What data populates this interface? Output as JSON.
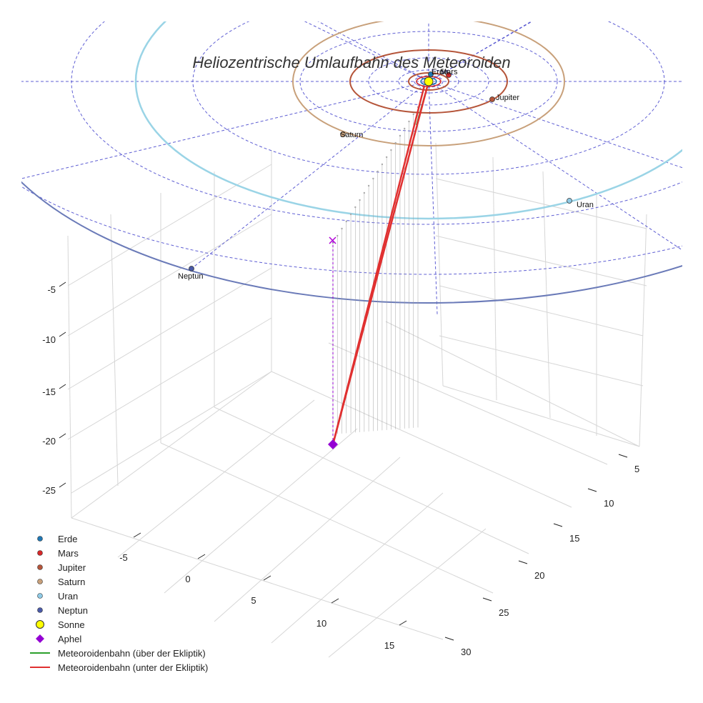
{
  "chart_data": {
    "type": "3d-scatter-line",
    "title": "Heliozentrische Umlaufbahn des Meteoroiden",
    "axes": {
      "x_ticks": [
        -5,
        0,
        5,
        10,
        15
      ],
      "y_ticks": [
        5,
        10,
        15,
        20,
        25,
        30
      ],
      "z_ticks": [
        -5,
        -10,
        -15,
        -20,
        -25
      ]
    },
    "grid": true,
    "legend_position": "bottom-left",
    "planets": [
      {
        "name": "Erde",
        "label": "Erde",
        "color": "#1f77b4"
      },
      {
        "name": "Mars",
        "label": "Mars",
        "color": "#d62728"
      },
      {
        "name": "Jupiter",
        "label": "Jupiter",
        "color": "#b5553a"
      },
      {
        "name": "Saturn",
        "label": "Saturn",
        "color": "#c8a07a"
      },
      {
        "name": "Uran",
        "label": "Uran",
        "color": "#8ecae6"
      },
      {
        "name": "Neptun",
        "label": "Neptun",
        "color": "#4a5aa8"
      }
    ],
    "sun": {
      "name": "Sonne",
      "color": "#ffff00"
    },
    "aphel": {
      "name": "Aphel",
      "color": "#9400d3"
    },
    "series": [
      {
        "name": "Meteoroidenbahn (über der Ekliptik)",
        "color": "#2ca02c"
      },
      {
        "name": "Meteoroidenbahn (unter der Ekliptik)",
        "color": "#e03030"
      }
    ],
    "legend": [
      {
        "label": "Erde",
        "type": "dot",
        "color": "#1f77b4"
      },
      {
        "label": "Mars",
        "type": "dot",
        "color": "#d62728"
      },
      {
        "label": "Jupiter",
        "type": "dot",
        "color": "#b5553a"
      },
      {
        "label": "Saturn",
        "type": "dot",
        "color": "#c8a07a"
      },
      {
        "label": "Uran",
        "type": "dot",
        "color": "#8ecae6"
      },
      {
        "label": "Neptun",
        "type": "dot",
        "color": "#4a5aa8"
      },
      {
        "label": "Sonne",
        "type": "bigdot",
        "color": "#ffff00"
      },
      {
        "label": "Aphel",
        "type": "diamond",
        "color": "#9400d3"
      },
      {
        "label": "Meteoroidenbahn (über der Ekliptik)",
        "type": "line",
        "color": "#2ca02c"
      },
      {
        "label": "Meteoroidenbahn (unter der Ekliptik)",
        "type": "line",
        "color": "#e03030"
      }
    ]
  }
}
